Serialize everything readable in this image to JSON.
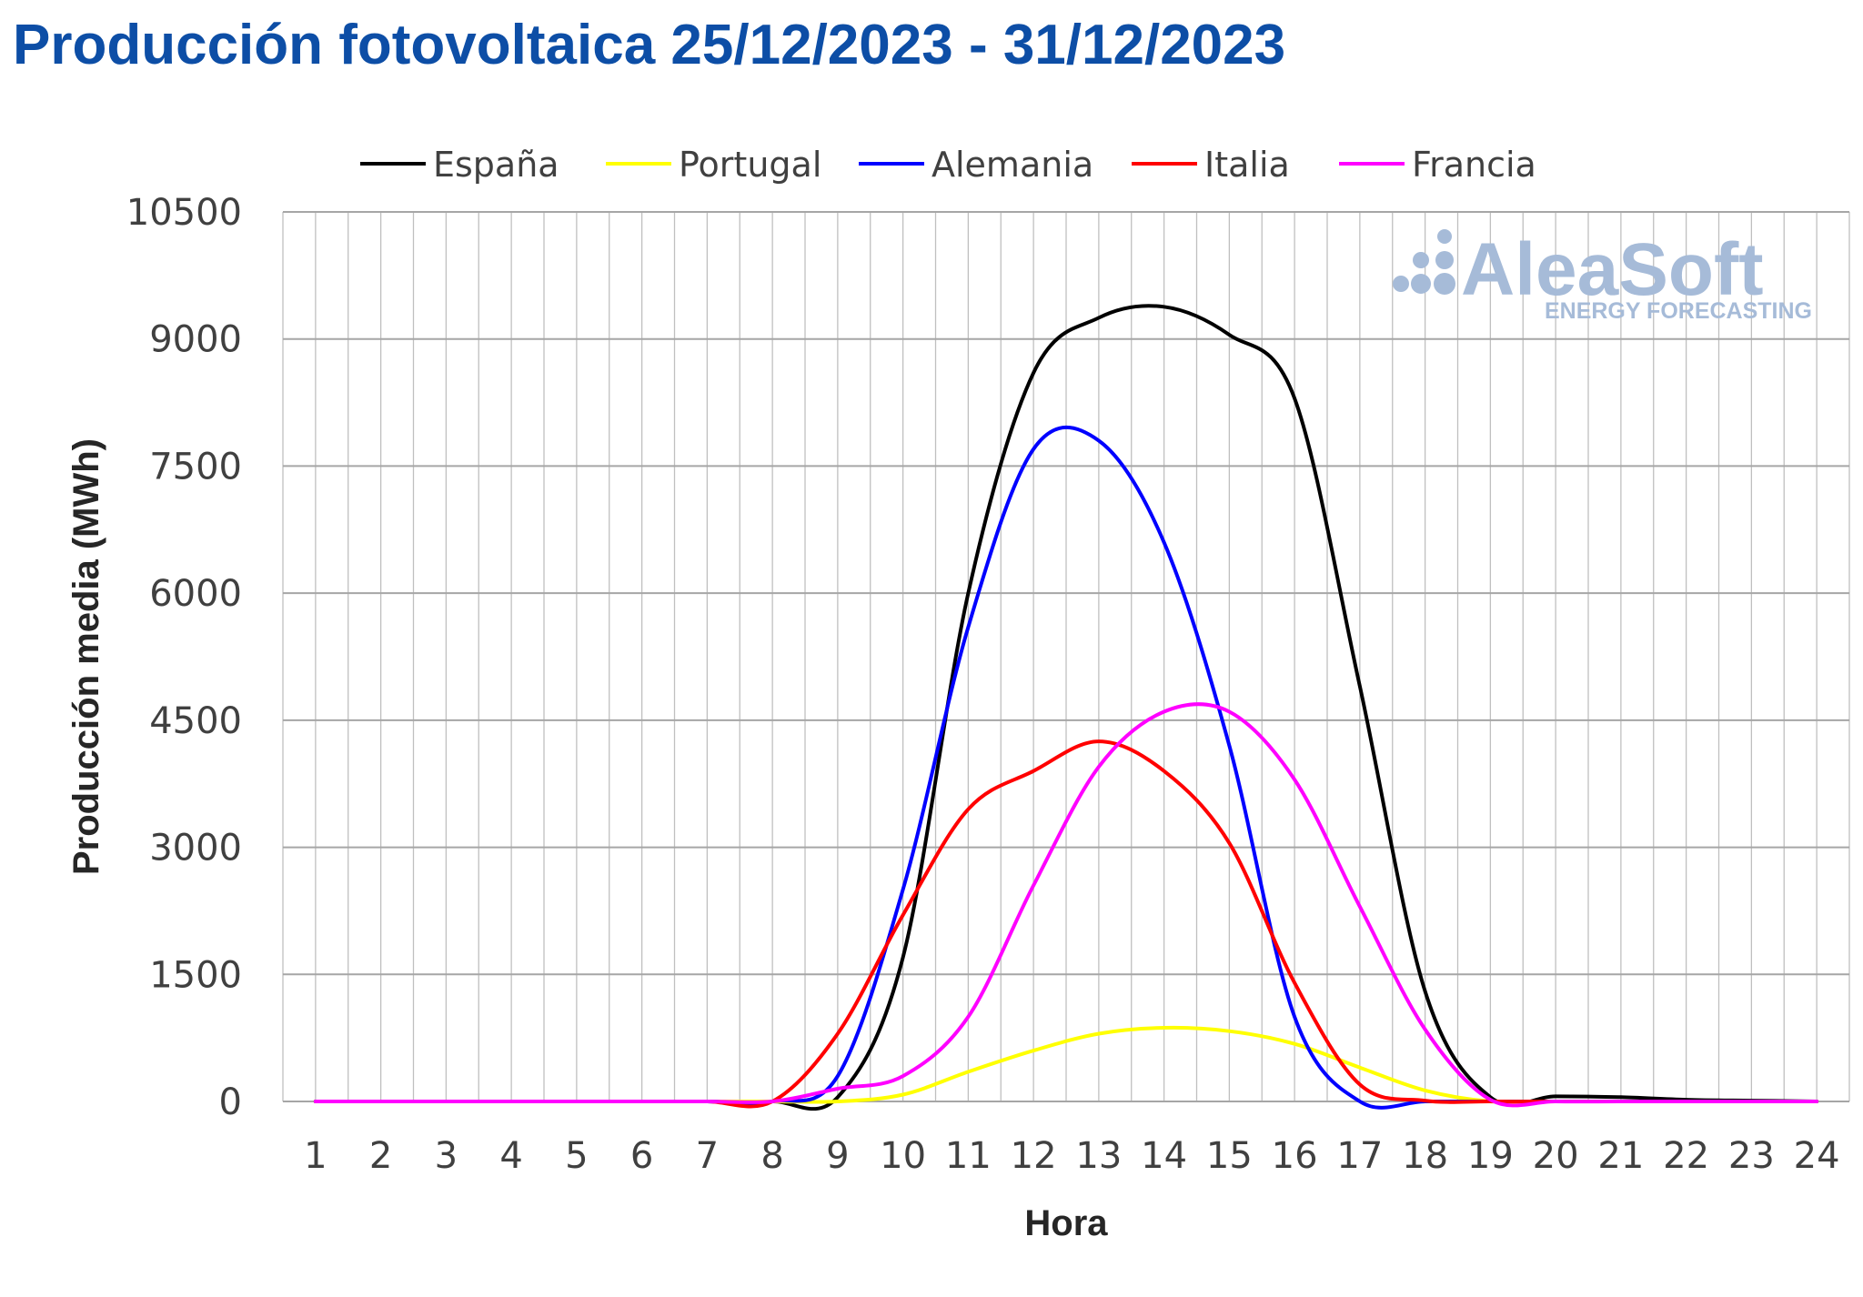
{
  "title": "Producción fotovoltaica 25/12/2023 - 31/12/2023",
  "watermark": {
    "brand": "AleaSoft",
    "tagline": "ENERGY FORECASTING"
  },
  "chart_data": {
    "type": "line",
    "title": "Producción fotovoltaica 25/12/2023 - 31/12/2023",
    "xlabel": "Hora",
    "ylabel": "Producción media (MWh)",
    "x": [
      1,
      2,
      3,
      4,
      5,
      6,
      7,
      8,
      9,
      10,
      11,
      12,
      13,
      14,
      15,
      16,
      17,
      18,
      19,
      20,
      21,
      22,
      23,
      24
    ],
    "xlim": [
      0.5,
      24.5
    ],
    "ylim": [
      0,
      10500
    ],
    "yticks": [
      0,
      1500,
      3000,
      4500,
      6000,
      7500,
      9000,
      10500
    ],
    "grid": true,
    "legend_position": "top",
    "series": [
      {
        "name": "España",
        "color": "#000000",
        "values": [
          0,
          0,
          0,
          0,
          0,
          0,
          0,
          0,
          50,
          1700,
          6000,
          8600,
          9250,
          9380,
          9050,
          8300,
          4900,
          1300,
          50,
          60,
          50,
          20,
          10,
          0
        ]
      },
      {
        "name": "Portugal",
        "color": "#ffff00",
        "values": [
          0,
          0,
          0,
          0,
          0,
          0,
          0,
          0,
          0,
          80,
          350,
          600,
          800,
          870,
          830,
          680,
          400,
          130,
          0,
          0,
          0,
          0,
          0,
          0
        ]
      },
      {
        "name": "Alemania",
        "color": "#0000ff",
        "values": [
          0,
          0,
          0,
          0,
          0,
          0,
          0,
          0,
          300,
          2500,
          5600,
          7700,
          7800,
          6600,
          4200,
          1000,
          0,
          0,
          0,
          0,
          0,
          0,
          0,
          0
        ]
      },
      {
        "name": "Italia",
        "color": "#ff0000",
        "values": [
          0,
          0,
          0,
          0,
          0,
          0,
          0,
          0,
          800,
          2200,
          3450,
          3900,
          4250,
          3900,
          3050,
          1400,
          200,
          10,
          0,
          0,
          0,
          0,
          0,
          0
        ]
      },
      {
        "name": "Francia",
        "color": "#ff00ff",
        "values": [
          0,
          0,
          0,
          0,
          0,
          0,
          0,
          0,
          150,
          300,
          1000,
          2550,
          3950,
          4600,
          4600,
          3800,
          2300,
          850,
          20,
          0,
          0,
          0,
          0,
          0
        ]
      }
    ]
  }
}
